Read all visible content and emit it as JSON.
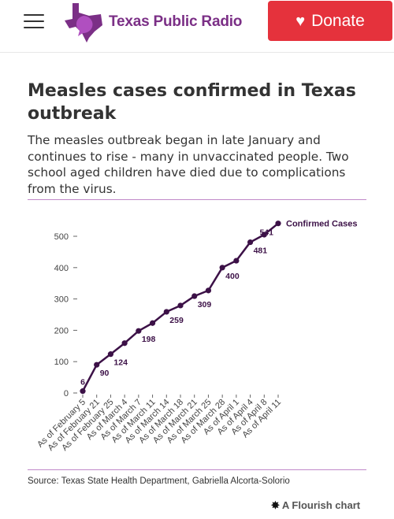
{
  "header": {
    "logo_text": "Texas Public Radio",
    "donate_label": "Donate",
    "brand_color": "#7b2f86",
    "donate_color": "#e5323c"
  },
  "article": {
    "title": "Measles cases confirmed in Texas outbreak",
    "subtitle": "The measles outbreak began in late January and continues to rise - many in unvaccinated people. Two school aged children have died due to complications from the virus.",
    "source": "Source: Texas State Health Department, Gabriella Alcorta-Solorio",
    "flourish_label": "A Flourish chart"
  },
  "chart_data": {
    "type": "line",
    "series_color": "#3c1147",
    "ylim": [
      0,
      550
    ],
    "y_ticks": [
      0,
      100,
      200,
      300,
      400,
      500
    ],
    "categories": [
      "As of February 5",
      "As of February 21",
      "As of February 25",
      "As of March 4",
      "As of March 7",
      "As of March 11",
      "As of March 14",
      "As of March 18",
      "As of March 21",
      "As of March 25",
      "As of March 28",
      "As of April 1",
      "As of April 4",
      "As of April 8",
      "As of April 11"
    ],
    "series": [
      {
        "name": "Confirmed Cases",
        "points": [
          {
            "x": "As of February 5",
            "y": 6
          },
          {
            "x": "As of February 21",
            "y": 90
          },
          {
            "x": "As of February 25",
            "y": 124
          },
          {
            "x": "As of March 4",
            "y": 159
          },
          {
            "x": "As of March 7",
            "y": 198
          },
          {
            "x": "As of March 11",
            "y": 223
          },
          {
            "x": "As of March 14",
            "y": 259
          },
          {
            "x": "As of March 18",
            "y": 279
          },
          {
            "x": "As of March 21",
            "y": 309
          },
          {
            "x": "As of March 25",
            "y": 327
          },
          {
            "x": "As of March 28",
            "y": 400
          },
          {
            "x": "As of April 1",
            "y": 422
          },
          {
            "x": "As of April 4",
            "y": 481
          },
          {
            "x": "As of April 8",
            "y": 505
          },
          {
            "x": "As of April 11",
            "y": 541
          }
        ],
        "labeled_values": [
          "6",
          "90",
          "124",
          "198",
          "259",
          "309",
          "400",
          "481",
          "541"
        ]
      }
    ]
  }
}
